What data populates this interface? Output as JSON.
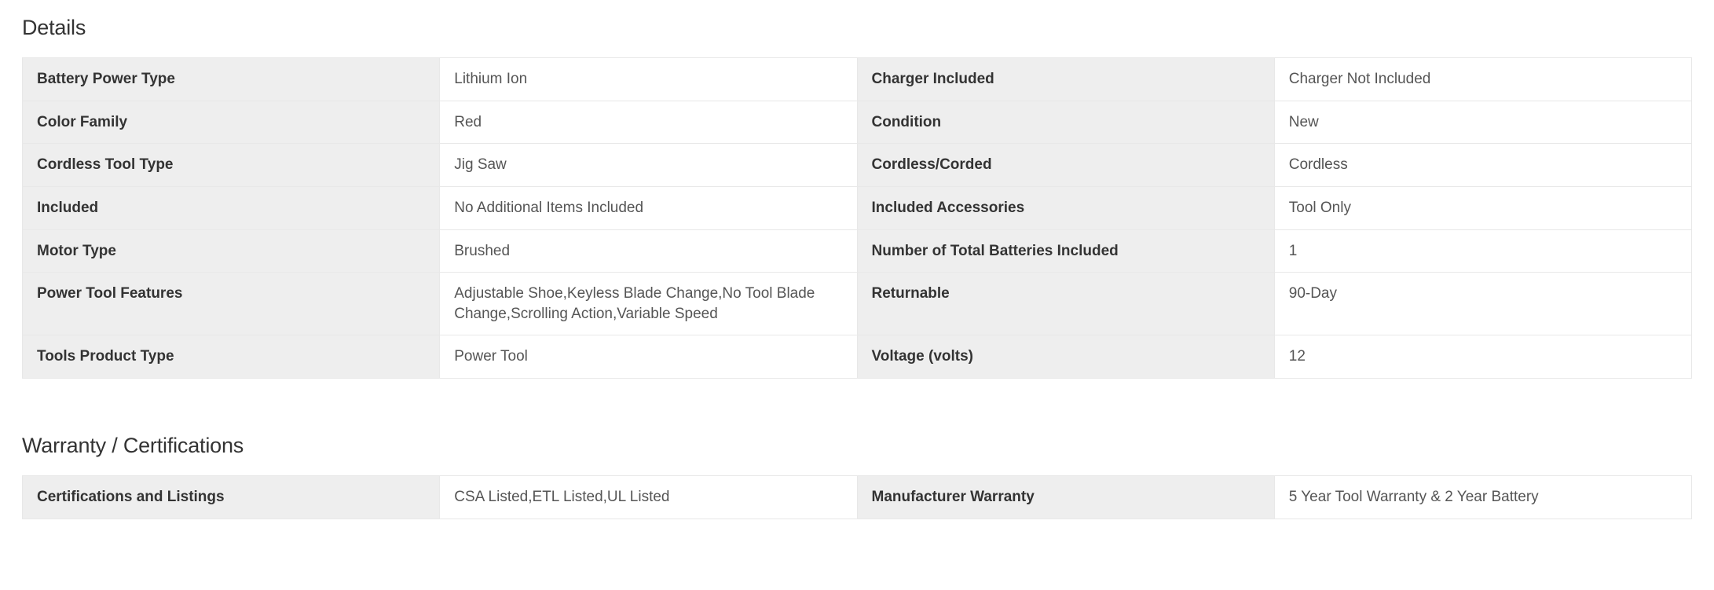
{
  "details": {
    "title": "Details",
    "rows": [
      {
        "l1": "Battery Power Type",
        "v1": "Lithium Ion",
        "l2": "Charger Included",
        "v2": "Charger Not Included"
      },
      {
        "l1": "Color Family",
        "v1": "Red",
        "l2": "Condition",
        "v2": "New"
      },
      {
        "l1": "Cordless Tool Type",
        "v1": "Jig Saw",
        "l2": "Cordless/Corded",
        "v2": "Cordless"
      },
      {
        "l1": "Included",
        "v1": "No Additional Items Included",
        "l2": "Included Accessories",
        "v2": "Tool Only"
      },
      {
        "l1": "Motor Type",
        "v1": "Brushed",
        "l2": "Number of Total Batteries Included",
        "v2": "1"
      },
      {
        "l1": "Power Tool Features",
        "v1": "Adjustable Shoe,Keyless Blade Change,No Tool Blade Change,Scrolling Action,Variable Speed",
        "l2": "Returnable",
        "v2": "90-Day"
      },
      {
        "l1": "Tools Product Type",
        "v1": "Power Tool",
        "l2": "Voltage (volts)",
        "v2": "12"
      }
    ],
    "styling": {
      "type": "table",
      "label_bg": "#eeeeee",
      "value_bg": "#ffffff",
      "border_color": "#e8e8e8",
      "label_font_weight": 600,
      "font_size_pt": 14,
      "title_fontsize_pt": 20
    }
  },
  "warranty": {
    "title": "Warranty / Certifications",
    "rows": [
      {
        "l1": "Certifications and Listings",
        "v1": "CSA Listed,ETL Listed,UL Listed",
        "l2": "Manufacturer Warranty",
        "v2": "5 Year Tool Warranty & 2 Year Battery"
      }
    ],
    "styling": {
      "type": "table",
      "label_bg": "#eeeeee",
      "value_bg": "#ffffff",
      "border_color": "#e8e8e8",
      "label_font_weight": 600,
      "font_size_pt": 14,
      "title_fontsize_pt": 20
    }
  }
}
